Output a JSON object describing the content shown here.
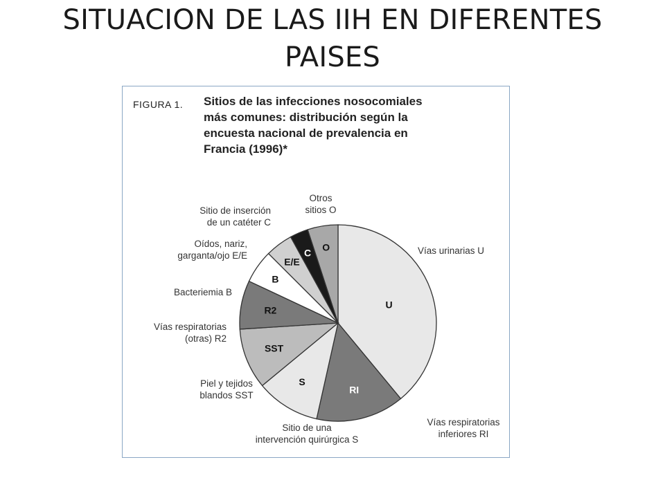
{
  "slide": {
    "title_lines": [
      "SITUACION DE LAS IIH EN DIFERENTES",
      "PAISES"
    ]
  },
  "figure": {
    "label": "FIGURA 1.",
    "caption_lines": [
      "Sitios de las infecciones nosocomiales",
      "más comunes: distribución según la",
      "encuesta nacional de prevalencia en",
      "Francia (1996)*"
    ]
  },
  "chart_data": {
    "type": "pie",
    "start": "12 o'clock",
    "direction": "clockwise",
    "slices": [
      {
        "code": "U",
        "label_lines": [
          "Vías urinarias U"
        ],
        "value": 39.0,
        "color": "#e8e8e8",
        "text_color": "#111111"
      },
      {
        "code": "RI",
        "label_lines": [
          "Vías respiratorias",
          "inferiores RI"
        ],
        "value": 14.5,
        "color": "#7a7a7a",
        "text_color": "#ffffff"
      },
      {
        "code": "S",
        "label_lines": [
          "Sitio de una",
          "intervención quirúrgica S"
        ],
        "value": 10.5,
        "color": "#e8e8e8",
        "text_color": "#111111"
      },
      {
        "code": "SST",
        "label_lines": [
          "Piel y tejidos",
          "blandos SST"
        ],
        "value": 10.0,
        "color": "#bcbcbc",
        "text_color": "#111111"
      },
      {
        "code": "R2",
        "label_lines": [
          "Vías respiratorias",
          "(otras) R2"
        ],
        "value": 8.0,
        "color": "#7a7a7a",
        "text_color": "#111111"
      },
      {
        "code": "B",
        "label_lines": [
          "Bacteriemia B"
        ],
        "value": 5.5,
        "color": "#ffffff",
        "text_color": "#111111"
      },
      {
        "code": "E/E",
        "label_lines": [
          "Oídos, nariz,",
          "garganta/ojo E/E"
        ],
        "value": 4.5,
        "color": "#d0d0d0",
        "text_color": "#111111"
      },
      {
        "code": "C",
        "label_lines": [
          "Sitio de inserción",
          "de un catéter C"
        ],
        "value": 3.0,
        "color": "#1a1a1a",
        "text_color": "#ffffff"
      },
      {
        "code": "O",
        "label_lines": [
          "Otros",
          "sitios O"
        ],
        "value": 5.0,
        "color": "#a8a8a8",
        "text_color": "#111111"
      }
    ]
  }
}
